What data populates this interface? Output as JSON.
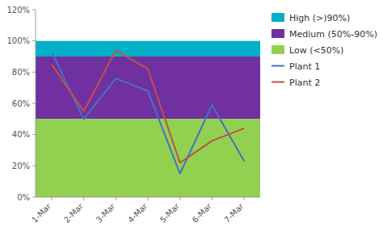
{
  "chart_data": {
    "type": "line",
    "categories": [
      "1-Mar",
      "2-Mar",
      "3-Mar",
      "4-Mar",
      "5-Mar",
      "6-Mar",
      "7-Mar"
    ],
    "series": [
      {
        "name": "Plant 1",
        "color": "#4472C4",
        "values": [
          0.93,
          0.5,
          0.76,
          0.68,
          0.15,
          0.59,
          0.23
        ]
      },
      {
        "name": "Plant 2",
        "color": "#C0504D",
        "values": [
          0.85,
          0.55,
          0.94,
          0.82,
          0.22,
          0.36,
          0.44
        ]
      }
    ],
    "bands": [
      {
        "name": "High (>)90%)",
        "color": "#00B0C8",
        "from": 0.9,
        "to": 1.0
      },
      {
        "name": "Medium (50%-90%)",
        "color": "#7030A0",
        "from": 0.5,
        "to": 0.9
      },
      {
        "name": "Low (<50%)",
        "color": "#92D050",
        "from": 0.0,
        "to": 0.5
      }
    ],
    "ylim": [
      0.0,
      1.2
    ],
    "yticks": [
      {
        "value": 0.0,
        "label": "0%"
      },
      {
        "value": 0.2,
        "label": "20%"
      },
      {
        "value": 0.4,
        "label": "40%"
      },
      {
        "value": 0.6,
        "label": "60%"
      },
      {
        "value": 0.8,
        "label": "80%"
      },
      {
        "value": 1.0,
        "label": "100%"
      },
      {
        "value": 1.2,
        "label": "120%"
      }
    ],
    "grid": false,
    "legend": "right"
  }
}
